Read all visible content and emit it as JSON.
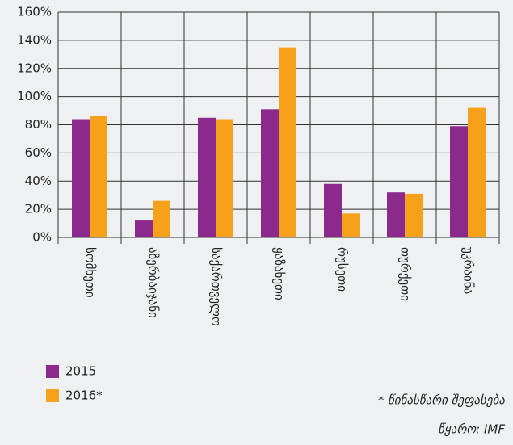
{
  "chart_data": {
    "type": "bar",
    "categories": [
      "სომხეთი",
      "აზერბაიჯანი",
      "საქართველო",
      "ყაზახეთი",
      "რუსეთი",
      "თურქეთი",
      "უკრაინა"
    ],
    "series": [
      {
        "name": "2015",
        "color": "#8b2a8c",
        "values": [
          84,
          12,
          85,
          91,
          38,
          32,
          79
        ]
      },
      {
        "name": "2016*",
        "color": "#f7a11a",
        "values": [
          86,
          26,
          84,
          135,
          17,
          31,
          92
        ]
      }
    ],
    "ylim": [
      0,
      160
    ],
    "yticks": [
      {
        "value": 0,
        "label": "0%"
      },
      {
        "value": 20,
        "label": "20%"
      },
      {
        "value": 40,
        "label": "40%"
      },
      {
        "value": 60,
        "label": "60%"
      },
      {
        "value": 80,
        "label": "80%"
      },
      {
        "value": 100,
        "label": "100%"
      },
      {
        "value": 120,
        "label": "120%"
      },
      {
        "value": 140,
        "label": "140%"
      },
      {
        "value": 160,
        "label": "160%"
      }
    ],
    "grid": true,
    "footnote": "* წინასწარი შეფასება",
    "source": "წყარო: IMF"
  }
}
